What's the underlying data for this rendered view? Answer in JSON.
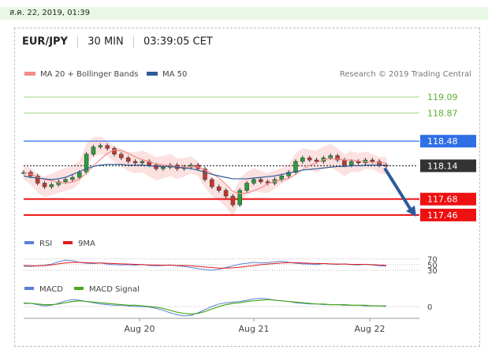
{
  "header": {
    "date_time": "ส.ค. 22, 2019, 01:39"
  },
  "chart_title": {
    "pair": "EUR/JPY",
    "timeframe": "30 MIN",
    "time": "03:39:05 CET"
  },
  "legend": {
    "ma20_label": "MA 20 + Bollinger Bands",
    "ma20_color": "#f28b8b",
    "ma50_label": "MA 50",
    "ma50_color": "#2d5b9a",
    "credit": "Research © 2019 Trading Central"
  },
  "chart_data": [
    {
      "type": "line",
      "panel": "price",
      "x_ticks": [
        "Aug 20",
        "Aug 21",
        "Aug 22"
      ],
      "ylim": [
        117.35,
        119.2
      ],
      "levels": [
        {
          "value": 119.09,
          "label": "119.09",
          "kind": "target",
          "color": "#5aae2e"
        },
        {
          "value": 118.87,
          "label": "118.87",
          "kind": "target",
          "color": "#5aae2e"
        },
        {
          "value": 118.48,
          "label": "118.48",
          "kind": "resistance",
          "color": "#2f6fe6"
        },
        {
          "value": 118.14,
          "label": "118.14",
          "kind": "last",
          "color": "#333333"
        },
        {
          "value": 117.68,
          "label": "117.68",
          "kind": "support",
          "color": "#ee1111"
        },
        {
          "value": 117.46,
          "label": "117.46",
          "kind": "support",
          "color": "#ee1111"
        }
      ],
      "price_close": [
        118.05,
        118.0,
        117.9,
        117.85,
        117.88,
        117.92,
        117.95,
        117.98,
        118.05,
        118.3,
        118.4,
        118.42,
        118.38,
        118.3,
        118.25,
        118.2,
        118.18,
        118.2,
        118.15,
        118.1,
        118.12,
        118.15,
        118.1,
        118.12,
        118.15,
        118.1,
        117.95,
        117.85,
        117.8,
        117.72,
        117.6,
        117.8,
        117.9,
        117.95,
        117.92,
        117.9,
        117.95,
        118.0,
        118.05,
        118.2,
        118.25,
        118.22,
        118.2,
        118.25,
        118.28,
        118.22,
        118.15,
        118.2,
        118.18,
        118.22,
        118.2,
        118.15,
        118.14
      ],
      "ma50": [
        118.0,
        117.98,
        117.97,
        117.96,
        117.95,
        117.96,
        117.98,
        118.02,
        118.06,
        118.1,
        118.13,
        118.15,
        118.16,
        118.16,
        118.16,
        118.15,
        118.15,
        118.15,
        118.14,
        118.13,
        118.13,
        118.13,
        118.12,
        118.11,
        118.1,
        118.08,
        118.05,
        118.02,
        118.0,
        117.98,
        117.96,
        117.96,
        117.96,
        117.97,
        117.98,
        117.99,
        118.0,
        118.02,
        118.04,
        118.06,
        118.08,
        118.09,
        118.1,
        118.11,
        118.12,
        118.13,
        118.13,
        118.14,
        118.14,
        118.15,
        118.15,
        118.15,
        118.15
      ],
      "forecast_arrow": {
        "from": 118.14,
        "to": 117.46
      }
    },
    {
      "type": "line",
      "panel": "rsi",
      "legend": [
        "RSI",
        "9MA"
      ],
      "colors": [
        "#5b7fd6",
        "#e01a1a"
      ],
      "levels": [
        70,
        50,
        30
      ],
      "rsi": [
        45,
        44,
        46,
        48,
        52,
        60,
        66,
        64,
        58,
        55,
        54,
        56,
        52,
        50,
        49,
        50,
        48,
        51,
        47,
        46,
        47,
        49,
        46,
        44,
        40,
        36,
        33,
        31,
        34,
        40,
        46,
        52,
        55,
        58,
        56,
        57,
        60,
        62,
        58,
        55,
        53,
        52,
        50,
        54,
        52,
        51,
        53,
        50,
        49,
        51,
        49,
        46,
        45
      ],
      "ma9": [
        47,
        46,
        46,
        47,
        49,
        53,
        56,
        58,
        58,
        57,
        56,
        56,
        55,
        54,
        53,
        52,
        51,
        50,
        49,
        49,
        48,
        48,
        47,
        47,
        46,
        44,
        42,
        40,
        38,
        38,
        39,
        41,
        44,
        47,
        50,
        52,
        54,
        56,
        57,
        57,
        56,
        55,
        54,
        54,
        53,
        52,
        52,
        51,
        51,
        51,
        50,
        49,
        48
      ]
    },
    {
      "type": "line",
      "panel": "macd",
      "legend": [
        "MACD",
        "MACD Signal"
      ],
      "colors": [
        "#5b7fd6",
        "#4aa81e"
      ],
      "levels": [
        0
      ],
      "macd": [
        0.06,
        0.05,
        0.03,
        0.01,
        0.02,
        0.05,
        0.09,
        0.11,
        0.1,
        0.08,
        0.06,
        0.04,
        0.03,
        0.02,
        0.02,
        0.01,
        0.0,
        0.0,
        -0.01,
        -0.03,
        -0.06,
        -0.1,
        -0.13,
        -0.15,
        -0.14,
        -0.1,
        -0.05,
        0.0,
        0.04,
        0.06,
        0.07,
        0.08,
        0.1,
        0.12,
        0.13,
        0.12,
        0.1,
        0.09,
        0.08,
        0.06,
        0.05,
        0.04,
        0.04,
        0.03,
        0.03,
        0.03,
        0.02,
        0.02,
        0.02,
        0.01,
        0.01,
        0.01,
        0.0
      ],
      "signal": [
        0.05,
        0.05,
        0.04,
        0.03,
        0.03,
        0.04,
        0.06,
        0.08,
        0.09,
        0.08,
        0.07,
        0.06,
        0.05,
        0.04,
        0.03,
        0.02,
        0.02,
        0.01,
        0.0,
        -0.01,
        -0.03,
        -0.06,
        -0.09,
        -0.11,
        -0.12,
        -0.11,
        -0.08,
        -0.04,
        0.0,
        0.03,
        0.05,
        0.06,
        0.08,
        0.09,
        0.1,
        0.11,
        0.1,
        0.09,
        0.08,
        0.07,
        0.06,
        0.05,
        0.04,
        0.04,
        0.03,
        0.03,
        0.03,
        0.02,
        0.02,
        0.02,
        0.01,
        0.01,
        0.01
      ]
    }
  ]
}
